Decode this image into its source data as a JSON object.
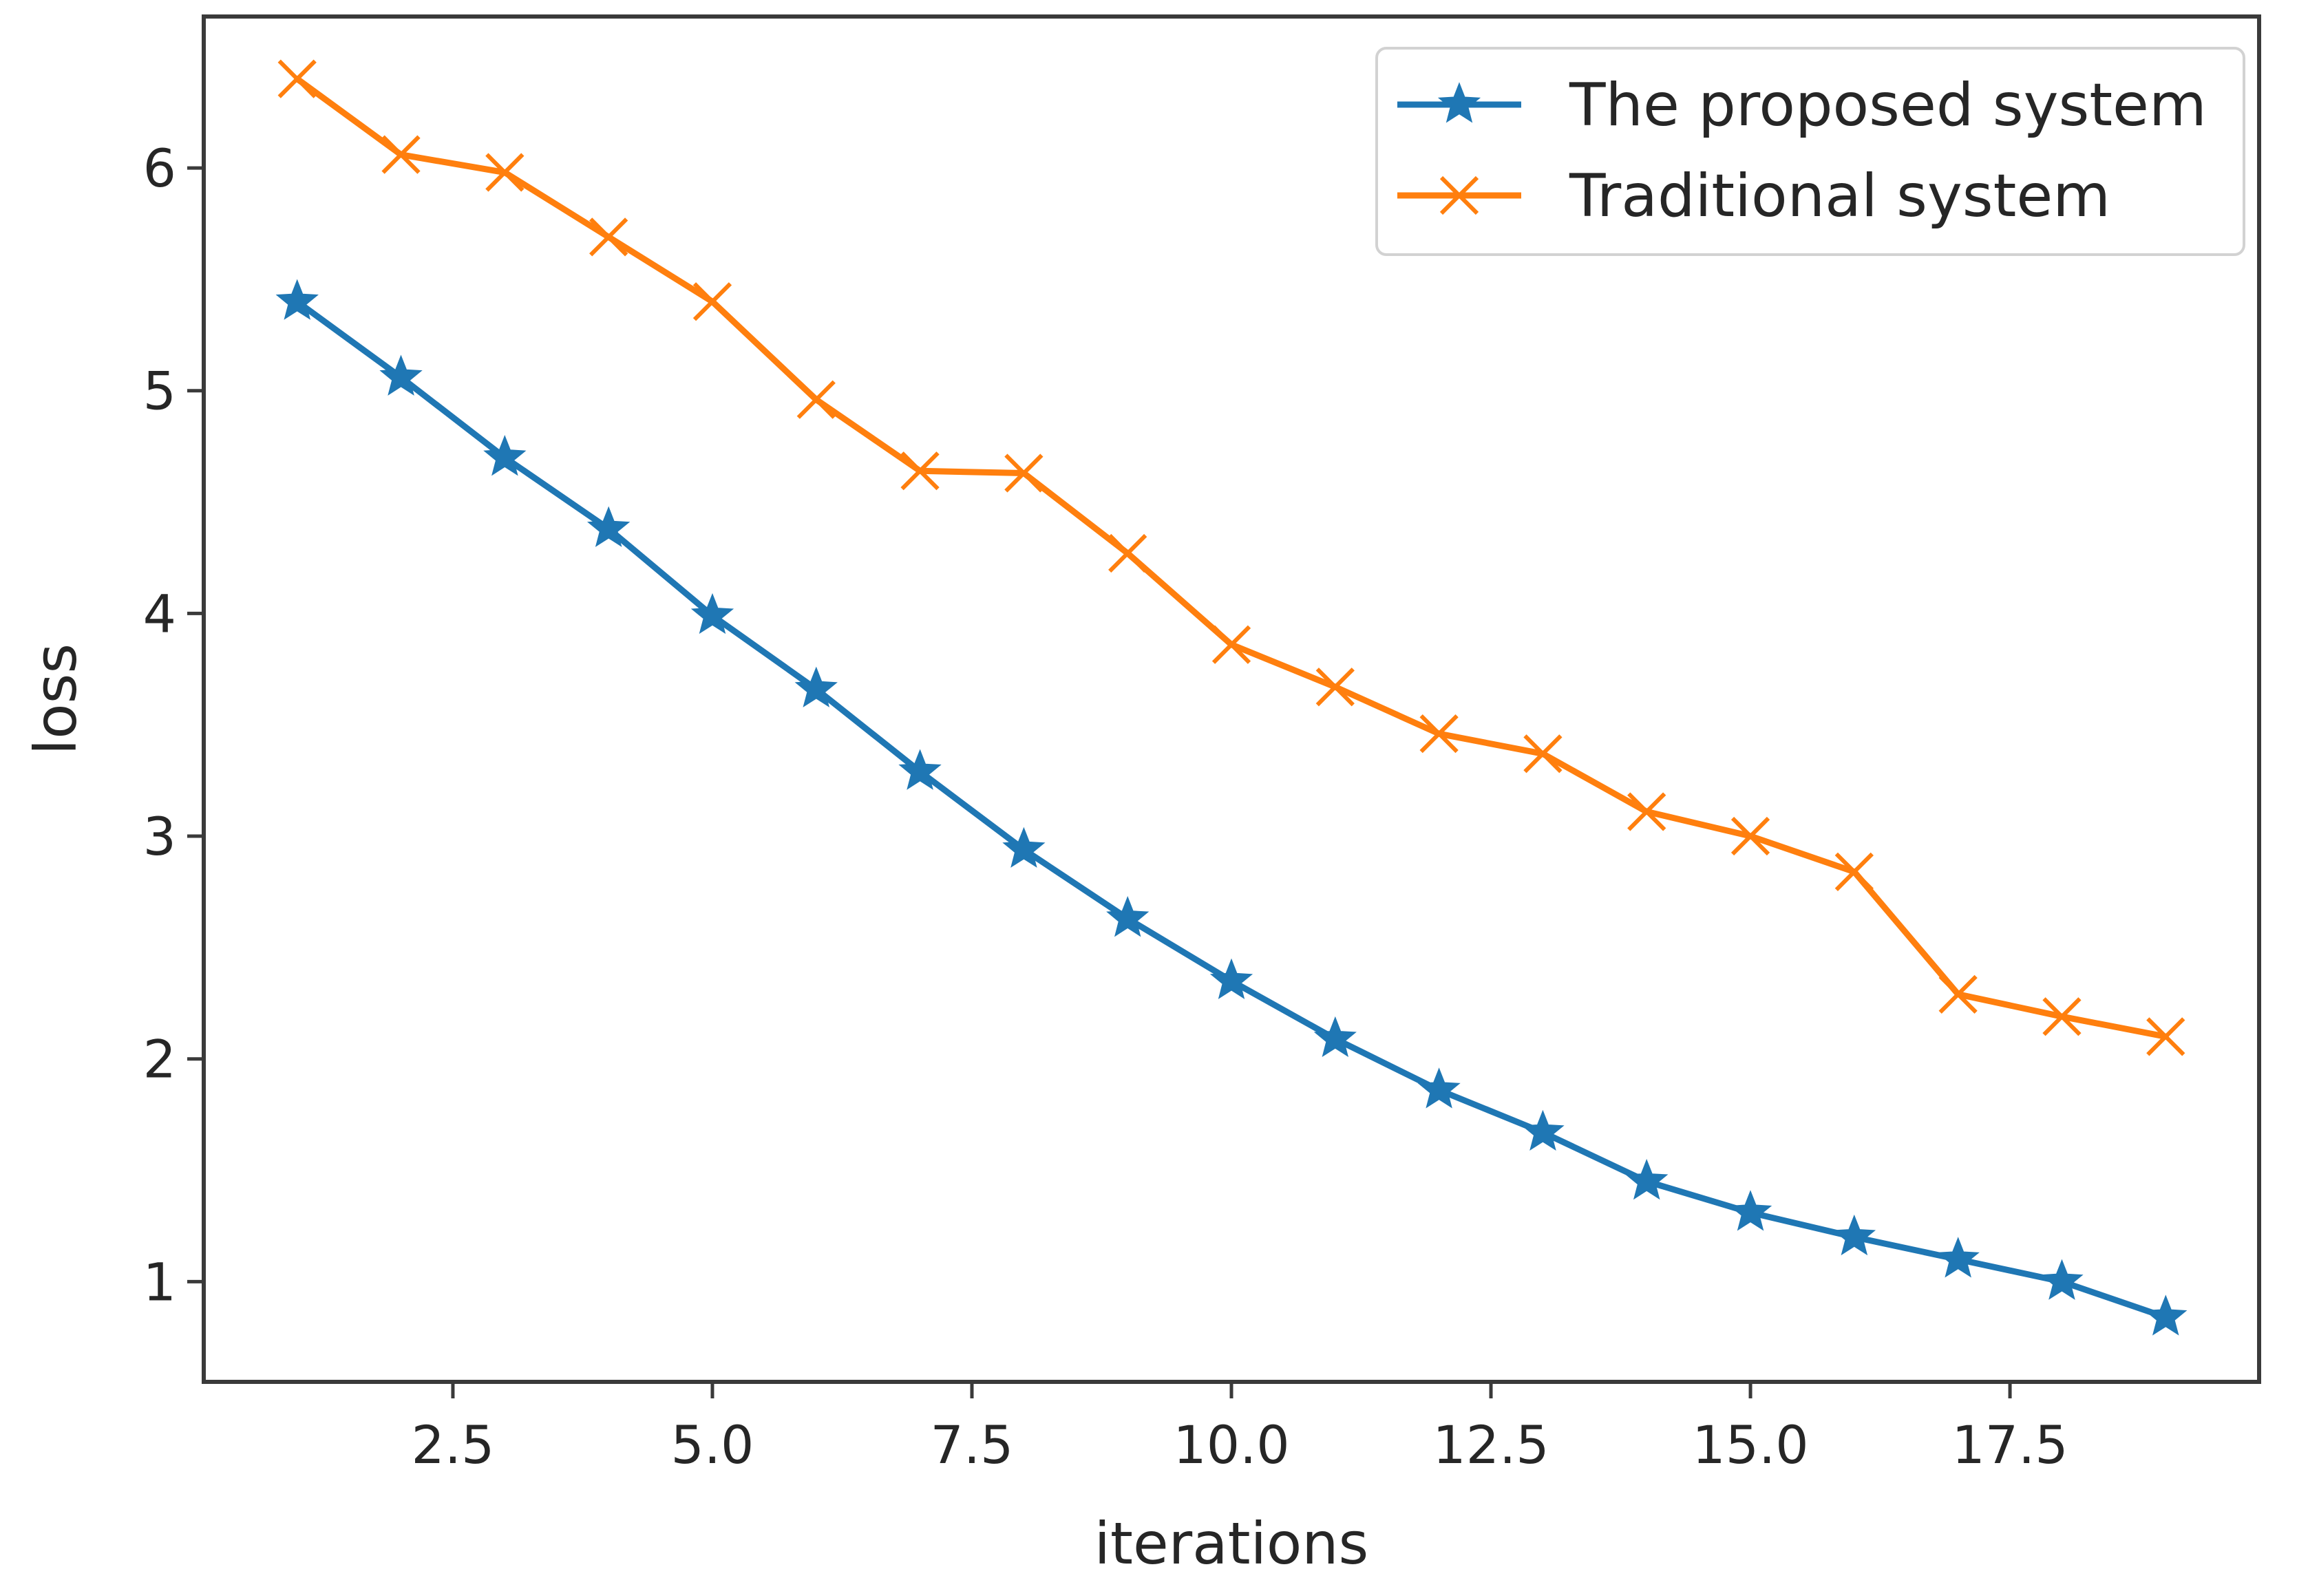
{
  "chart_data": {
    "type": "line",
    "title": "",
    "xlabel": "iterations",
    "ylabel": "loss",
    "xlim": [
      0.1,
      19.9
    ],
    "ylim": [
      0.55,
      6.68
    ],
    "xticks": [
      2.5,
      5.0,
      7.5,
      10.0,
      12.5,
      15.0,
      17.5
    ],
    "xtick_labels": [
      "2.5",
      "5.0",
      "7.5",
      "10.0",
      "12.5",
      "15.0",
      "17.5"
    ],
    "yticks": [
      1,
      2,
      3,
      4,
      5,
      6
    ],
    "ytick_labels": [
      "1",
      "2",
      "3",
      "4",
      "5",
      "6"
    ],
    "grid": false,
    "legend_position": "top-right",
    "x": [
      1,
      2,
      3,
      4,
      5,
      6,
      7,
      8,
      9,
      10,
      11,
      12,
      13,
      14,
      15,
      16,
      17,
      18,
      19
    ],
    "series": [
      {
        "name": "The proposed system",
        "color": "#1f77b4",
        "marker": "star",
        "values": [
          5.4,
          5.06,
          4.7,
          4.38,
          3.99,
          3.66,
          3.29,
          2.94,
          2.63,
          2.35,
          2.09,
          1.86,
          1.67,
          1.45,
          1.31,
          1.2,
          1.1,
          1.0,
          0.84
        ]
      },
      {
        "name": "Traditional system",
        "color": "#ff7f0e",
        "marker": "x",
        "values": [
          6.4,
          6.06,
          5.98,
          5.69,
          5.4,
          4.96,
          4.64,
          4.63,
          4.27,
          3.86,
          3.67,
          3.46,
          3.37,
          3.11,
          3.0,
          2.84,
          2.29,
          2.19,
          2.1
        ]
      }
    ]
  }
}
